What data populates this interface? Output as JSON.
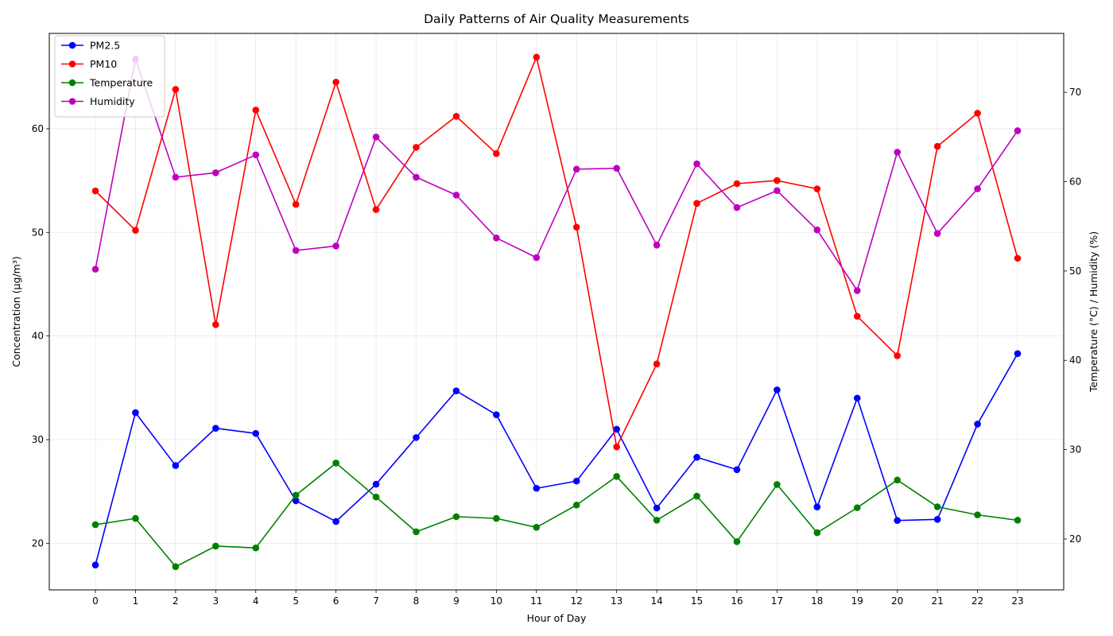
{
  "chart_data": {
    "type": "line",
    "title": "Daily Patterns of Air Quality Measurements",
    "xlabel": "Hour of Day",
    "ylabel": "Concentration (μg/m³)",
    "ylabel_right": "Temperature (°C) / Humidity (%)",
    "x": [
      0,
      1,
      2,
      3,
      4,
      5,
      6,
      7,
      8,
      9,
      10,
      11,
      12,
      13,
      14,
      15,
      16,
      17,
      18,
      19,
      20,
      21,
      22,
      23
    ],
    "xlim": [
      -1.15,
      24.15
    ],
    "ylim": [
      15.5,
      69.2
    ],
    "ylim_right": [
      14.3,
      76.6
    ],
    "yticks": [
      20,
      30,
      40,
      50,
      60
    ],
    "yticks_right": [
      20,
      30,
      40,
      50,
      60,
      70
    ],
    "grid": true,
    "legend_position": "upper-left",
    "series": [
      {
        "name": "PM2.5",
        "axis": "left",
        "color": "#0000ff",
        "values": [
          17.9,
          32.6,
          27.5,
          31.1,
          30.6,
          24.1,
          22.1,
          25.7,
          30.2,
          34.7,
          32.4,
          25.3,
          26.0,
          31.0,
          23.4,
          28.3,
          27.1,
          34.8,
          23.5,
          34.0,
          22.2,
          22.3,
          31.5,
          38.3
        ]
      },
      {
        "name": "PM10",
        "axis": "left",
        "color": "#ff0000",
        "values": [
          54.0,
          50.2,
          63.8,
          41.1,
          61.8,
          52.7,
          64.5,
          52.2,
          58.2,
          61.2,
          57.6,
          66.9,
          50.5,
          29.3,
          37.3,
          52.8,
          54.7,
          55.0,
          54.2,
          41.9,
          38.1,
          58.3,
          61.5,
          47.5
        ]
      },
      {
        "name": "Temperature",
        "axis": "right",
        "color": "#008000",
        "values": [
          21.6,
          22.3,
          16.9,
          19.2,
          19.0,
          24.9,
          28.5,
          24.7,
          20.8,
          22.5,
          22.3,
          21.3,
          23.8,
          27.0,
          22.1,
          24.8,
          19.7,
          26.1,
          20.7,
          23.5,
          26.6,
          23.6,
          22.7,
          22.1
        ]
      },
      {
        "name": "Humidity",
        "axis": "right",
        "color": "#bf00bf",
        "values": [
          50.2,
          73.7,
          60.5,
          61.0,
          63.0,
          52.3,
          52.8,
          65.0,
          60.5,
          58.5,
          53.7,
          51.5,
          61.4,
          61.5,
          52.9,
          62.0,
          57.1,
          59.0,
          54.6,
          47.8,
          63.3,
          54.2,
          59.2,
          65.7
        ]
      }
    ]
  }
}
